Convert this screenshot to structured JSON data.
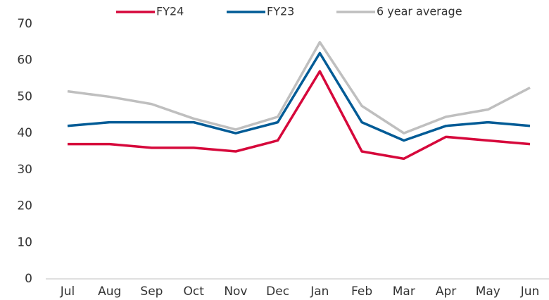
{
  "chart_data": {
    "type": "line",
    "categories": [
      "Jul",
      "Aug",
      "Sep",
      "Oct",
      "Nov",
      "Dec",
      "Jan",
      "Feb",
      "Mar",
      "Apr",
      "May",
      "Jun"
    ],
    "series": [
      {
        "name": "FY24",
        "color": "#d6083b",
        "values": [
          37,
          37,
          36,
          36,
          35,
          38,
          57,
          35,
          33,
          39,
          38,
          37
        ]
      },
      {
        "name": "FY23",
        "color": "#005b96",
        "values": [
          42,
          43,
          43,
          43,
          40,
          43,
          62,
          43,
          38,
          42,
          43,
          42
        ]
      },
      {
        "name": "6 year average",
        "color": "#bfbfbf",
        "values": [
          51.5,
          50,
          48,
          44,
          41,
          44.5,
          65,
          47.5,
          40,
          44.5,
          46.5,
          52.5
        ]
      }
    ],
    "ylim": [
      0,
      70
    ],
    "yticks": [
      0,
      10,
      20,
      30,
      40,
      50,
      60,
      70
    ],
    "grid": false,
    "legend": "top"
  }
}
